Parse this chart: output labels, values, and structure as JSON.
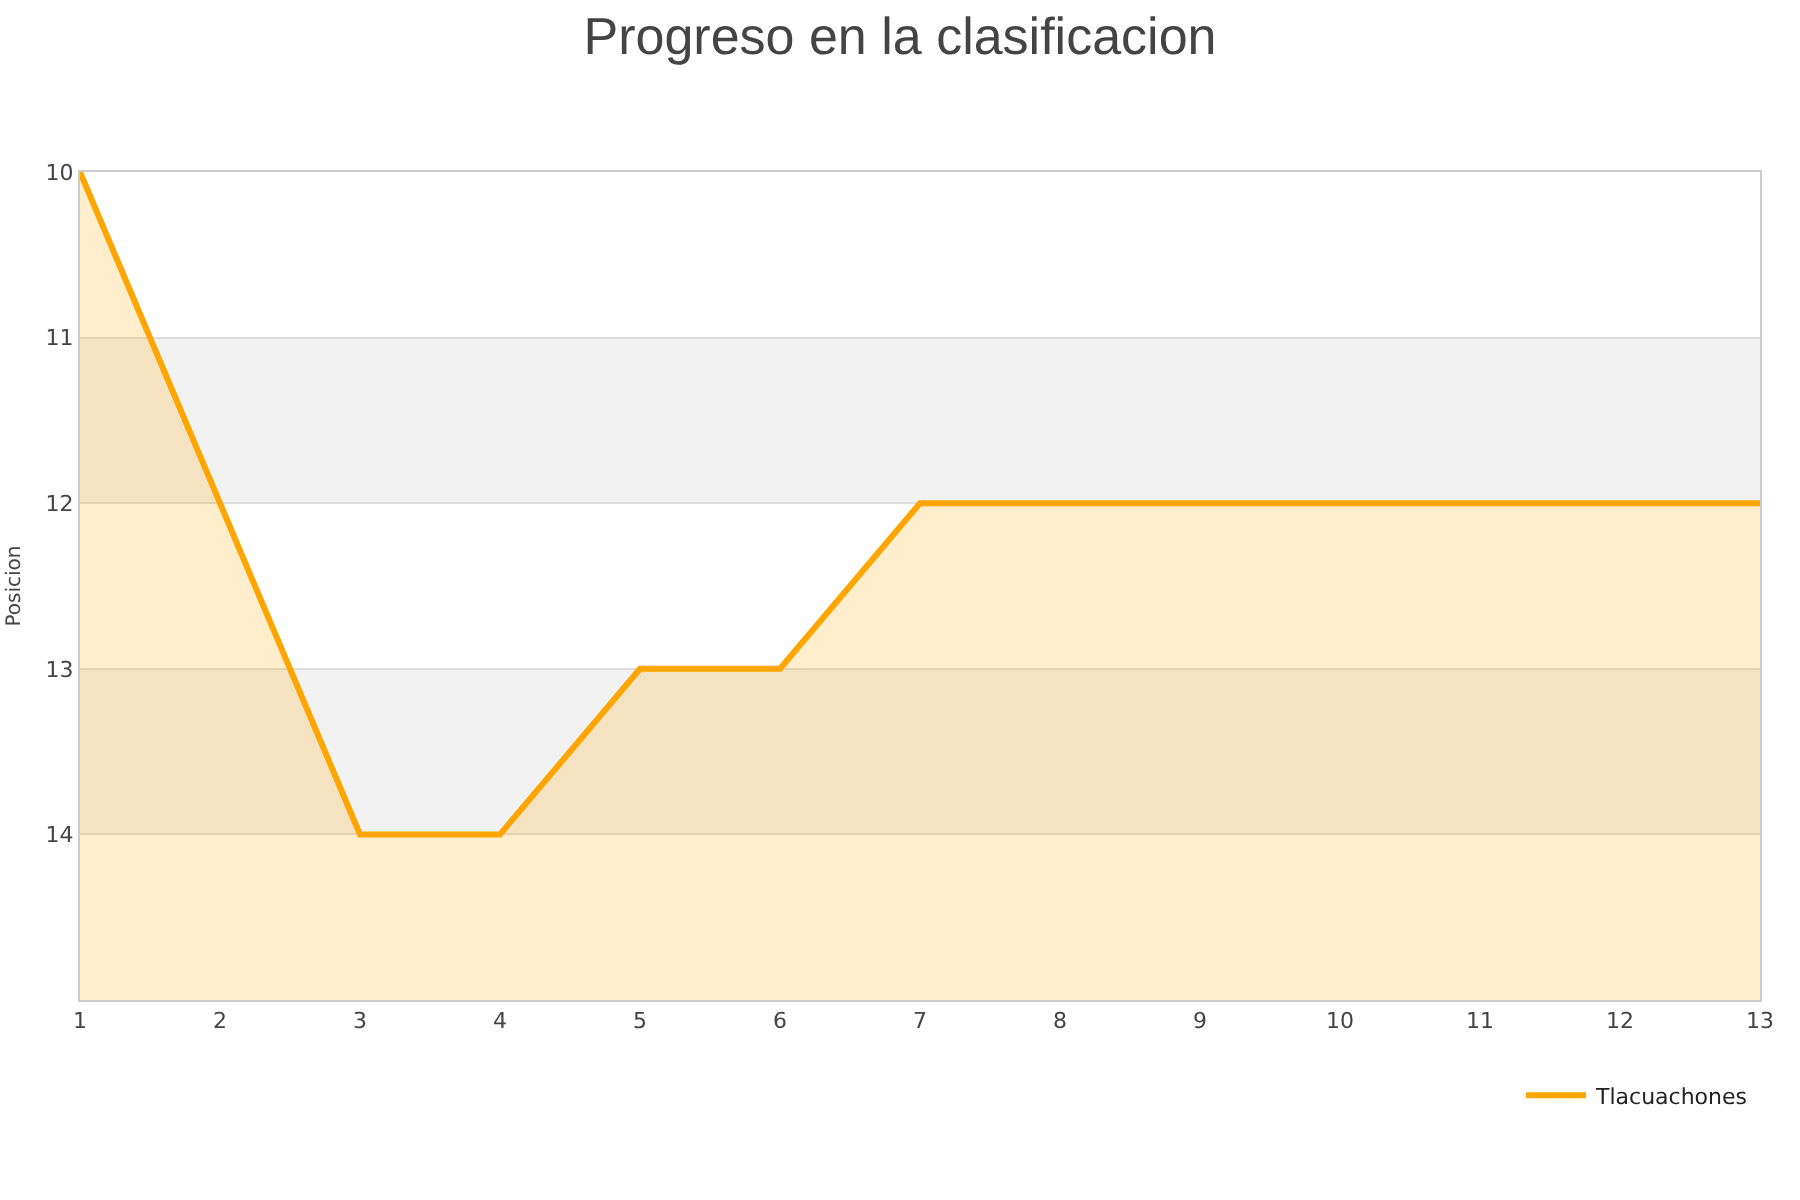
{
  "chart_data": {
    "type": "area",
    "title": "Progreso en la clasificacion",
    "ylabel": "Posicion",
    "x": [
      1,
      2,
      3,
      4,
      5,
      6,
      7,
      8,
      9,
      10,
      11,
      12,
      13
    ],
    "series": [
      {
        "name": "Tlacuachones",
        "color": "#ffa500",
        "values": [
          10,
          12,
          14,
          14,
          13,
          13,
          12,
          12,
          12,
          12,
          12,
          12,
          12
        ]
      }
    ],
    "xlim": [
      1,
      13
    ],
    "xticks": [
      1,
      2,
      3,
      4,
      5,
      6,
      7,
      8,
      9,
      10,
      11,
      12,
      13
    ],
    "ylim": [
      15,
      10
    ],
    "yticks": [
      10,
      11,
      12,
      13,
      14
    ],
    "bands": [
      {
        "axis": "y",
        "from": 11,
        "to": 12,
        "color": "#f2f2f2"
      },
      {
        "axis": "y",
        "from": 13,
        "to": 14,
        "color": "#f2f2f2"
      }
    ],
    "grid": "y",
    "legend": "bottom right"
  }
}
